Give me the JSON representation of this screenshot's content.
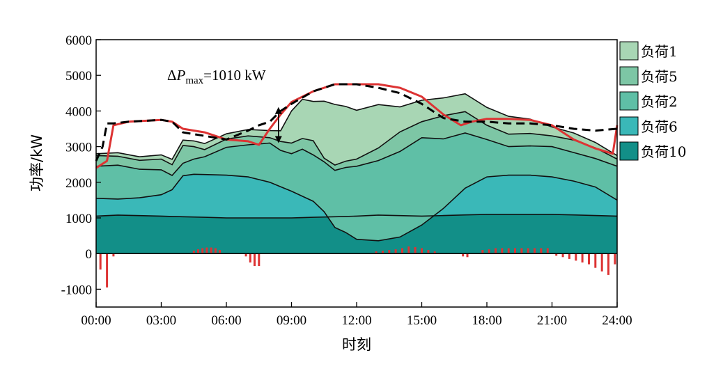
{
  "chart_data": {
    "type": "area",
    "title": "",
    "xlabel": "时刻",
    "ylabel": "功率/kW",
    "xlim": [
      0,
      24
    ],
    "ylim": [
      -1500,
      6000
    ],
    "x_ticks": [
      "00:00",
      "03:00",
      "06:00",
      "09:00",
      "12:00",
      "15:00",
      "18:00",
      "21:00",
      "24:00"
    ],
    "y_ticks": [
      6000,
      5000,
      4000,
      3000,
      2000,
      1000,
      0,
      -1000
    ],
    "annotation": {
      "prefix": "ΔP",
      "subscript": "max",
      "value": "=1010 kW",
      "x": 8.4,
      "y_low": 3100,
      "y_high": 4110
    },
    "legend_position": "right",
    "series": [
      {
        "name": "负荷10",
        "color": "#128f88",
        "x": [
          0,
          1,
          3,
          6,
          9,
          12,
          13,
          15,
          18,
          21,
          24
        ],
        "values": [
          1050,
          1080,
          1050,
          1000,
          1000,
          1050,
          1080,
          1050,
          1100,
          1100,
          1050
        ]
      },
      {
        "name": "负荷6",
        "color": "#3ab8b8",
        "x": [
          0,
          1,
          2,
          3,
          3.5,
          4,
          4.5,
          5,
          6,
          7,
          8,
          9,
          10,
          10.5,
          11,
          11.5,
          12,
          13,
          14,
          15,
          16,
          17,
          18,
          19,
          20,
          21,
          22,
          23,
          24
        ],
        "values": [
          500,
          450,
          500,
          600,
          750,
          1150,
          1200,
          1200,
          1200,
          1150,
          1000,
          750,
          450,
          150,
          -300,
          -450,
          -650,
          -720,
          -600,
          -250,
          200,
          750,
          1050,
          1100,
          1100,
          1050,
          950,
          800,
          450
        ]
      },
      {
        "name": "负荷2",
        "color": "#5fbfa6",
        "x": [
          0,
          1,
          2,
          3,
          3.5,
          4,
          5,
          6,
          7,
          8,
          8.5,
          9,
          9.5,
          10,
          10.5,
          11,
          12,
          13,
          14,
          15,
          16,
          17,
          18,
          19,
          20,
          21,
          22,
          23,
          24
        ],
        "values": [
          900,
          950,
          800,
          700,
          400,
          350,
          500,
          780,
          900,
          1100,
          1020,
          1050,
          1320,
          1300,
          1400,
          1600,
          2050,
          2250,
          2400,
          2450,
          1950,
          1550,
          1050,
          800,
          820,
          850,
          800,
          800,
          950
        ]
      },
      {
        "name": "负荷5",
        "color": "#7dc6a5",
        "x": [
          0,
          1,
          2,
          3,
          3.5,
          4,
          5,
          6,
          7,
          8,
          8.5,
          9,
          9.5,
          10,
          10.5,
          11,
          12,
          13,
          14,
          15,
          16,
          17,
          18,
          19,
          20,
          21,
          22,
          23,
          24
        ],
        "values": [
          300,
          250,
          250,
          300,
          300,
          500,
          200,
          230,
          250,
          150,
          250,
          300,
          300,
          400,
          100,
          150,
          200,
          350,
          550,
          450,
          650,
          600,
          400,
          350,
          350,
          300,
          350,
          300,
          200
        ]
      },
      {
        "name": "负荷1",
        "color": "#a8d6b4",
        "x": [
          0,
          1,
          2,
          3,
          3.5,
          4,
          5,
          6,
          7,
          8,
          8.5,
          9,
          9.5,
          10,
          10.5,
          11,
          12,
          13,
          14,
          15,
          16,
          17,
          18,
          19,
          20,
          21,
          22,
          23,
          24
        ],
        "values": [
          50,
          100,
          100,
          120,
          150,
          150,
          170,
          150,
          180,
          200,
          300,
          900,
          1100,
          1100,
          1600,
          1700,
          1370,
          1220,
          700,
          600,
          500,
          500,
          500,
          500,
          400,
          250,
          200,
          150,
          100
        ]
      }
    ],
    "red_line": {
      "name": "",
      "color": "#dd3333",
      "x": [
        0,
        0.5,
        0.8,
        1.5,
        3,
        3.5,
        4,
        5,
        6,
        7,
        7.5,
        8,
        8.5,
        9,
        10,
        11,
        12,
        13,
        14,
        15,
        16,
        16.8,
        17.3,
        18,
        19,
        20,
        21,
        22,
        23,
        23.8,
        24
      ],
      "values": [
        2400,
        2600,
        3600,
        3700,
        3750,
        3700,
        3500,
        3400,
        3200,
        3150,
        3050,
        3500,
        3900,
        4250,
        4550,
        4750,
        4750,
        4750,
        4650,
        4400,
        3900,
        3600,
        3700,
        3780,
        3780,
        3750,
        3600,
        3200,
        2950,
        2800,
        3600
      ]
    },
    "dashed_line": {
      "name": "",
      "color": "#000000",
      "x": [
        0,
        0.3,
        0.5,
        0.8,
        1.5,
        3,
        3.5,
        4,
        5,
        6,
        7,
        7.5,
        8,
        8.5,
        9,
        10,
        11,
        12,
        13,
        14,
        15,
        16,
        17,
        18,
        19,
        20,
        21,
        22,
        23,
        24
      ],
      "values": [
        2600,
        3000,
        3650,
        3650,
        3700,
        3750,
        3700,
        3400,
        3300,
        3200,
        3450,
        3600,
        3700,
        4000,
        4200,
        4550,
        4750,
        4750,
        4650,
        4500,
        4200,
        3800,
        3700,
        3700,
        3650,
        3650,
        3600,
        3500,
        3450,
        3500
      ]
    },
    "bars": {
      "name": "",
      "color": "#dd3333",
      "x": [
        0.2,
        0.5,
        0.8,
        4.5,
        4.7,
        4.9,
        5.1,
        5.3,
        5.5,
        5.7,
        6.9,
        7.1,
        7.3,
        7.5,
        12.9,
        13.2,
        13.5,
        13.8,
        14.1,
        14.4,
        14.7,
        15.0,
        15.3,
        15.6,
        16.9,
        17.1,
        17.8,
        18.1,
        18.4,
        18.7,
        19.0,
        19.3,
        19.6,
        19.9,
        20.2,
        20.5,
        20.8,
        21.2,
        21.5,
        21.8,
        22.1,
        22.4,
        22.7,
        23.0,
        23.3,
        23.6,
        23.9
      ],
      "values": [
        -450,
        -950,
        -80,
        80,
        120,
        150,
        170,
        170,
        150,
        100,
        -80,
        -250,
        -350,
        -350,
        60,
        80,
        100,
        120,
        150,
        200,
        180,
        150,
        100,
        60,
        -80,
        -100,
        100,
        120,
        150,
        150,
        150,
        150,
        150,
        150,
        150,
        150,
        150,
        -60,
        -100,
        -150,
        -200,
        -250,
        -300,
        -400,
        -500,
        -600,
        -300
      ]
    }
  }
}
